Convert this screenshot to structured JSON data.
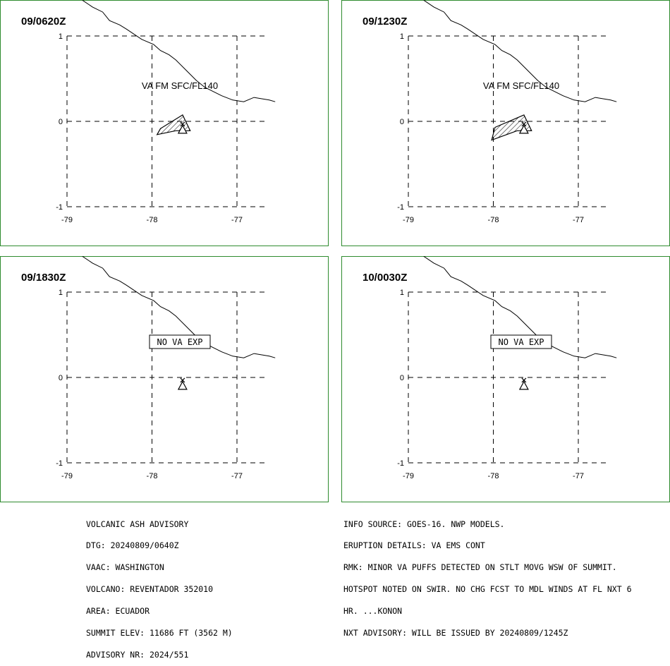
{
  "panels": [
    {
      "id": "p1",
      "time": "09/0620Z",
      "label": "VA FM SFC/FL140",
      "label_boxed": false,
      "ash": [
        [
          -77.64,
          0.075
        ],
        [
          -77.9,
          -0.085
        ],
        [
          -77.94,
          -0.155
        ],
        [
          -77.72,
          -0.11
        ],
        [
          -77.55,
          -0.11
        ]
      ]
    },
    {
      "id": "p2",
      "time": "09/1230Z",
      "label": "VA FM SFC/FL140",
      "label_boxed": false,
      "ash": [
        [
          -77.64,
          0.075
        ],
        [
          -77.98,
          -0.07
        ],
        [
          -78.02,
          -0.22
        ],
        [
          -77.72,
          -0.11
        ],
        [
          -77.55,
          -0.11
        ]
      ]
    },
    {
      "id": "p3",
      "time": "09/1830Z",
      "label": "NO VA EXP",
      "label_boxed": true,
      "ash": null
    },
    {
      "id": "p4",
      "time": "10/0030Z",
      "label": "NO VA EXP",
      "label_boxed": true,
      "ash": null
    }
  ],
  "axes": {
    "x_ticks": [
      {
        "v": -79,
        "label": "-79"
      },
      {
        "v": -78,
        "label": "-78"
      },
      {
        "v": -77,
        "label": "-77"
      }
    ],
    "y_ticks": [
      {
        "v": 1,
        "label": "1"
      },
      {
        "v": 0,
        "label": "0"
      },
      {
        "v": -1,
        "label": "-1"
      }
    ]
  },
  "volcano": {
    "lon": -77.64,
    "lat": -0.09
  },
  "coastline": [
    [
      -78.82,
      1.42
    ],
    [
      -78.7,
      1.34
    ],
    [
      -78.58,
      1.28
    ],
    [
      -78.5,
      1.18
    ],
    [
      -78.38,
      1.13
    ],
    [
      -78.3,
      1.08
    ],
    [
      -78.12,
      0.96
    ],
    [
      -77.98,
      0.9
    ],
    [
      -77.9,
      0.83
    ],
    [
      -77.8,
      0.78
    ],
    [
      -77.72,
      0.72
    ],
    [
      -77.6,
      0.6
    ],
    [
      -77.48,
      0.48
    ],
    [
      -77.38,
      0.4
    ],
    [
      -77.28,
      0.35
    ],
    [
      -77.18,
      0.3
    ],
    [
      -77.05,
      0.25
    ],
    [
      -76.92,
      0.23
    ],
    [
      -76.8,
      0.28
    ],
    [
      -76.62,
      0.25
    ],
    [
      -76.55,
      0.23
    ]
  ],
  "colors": {
    "frame": "#2e8b2e",
    "ink": "#000000",
    "background": "#ffffff"
  },
  "advisory_left": [
    "VOLCANIC ASH ADVISORY",
    "DTG: 20240809/0640Z",
    "VAAC: WASHINGTON",
    "VOLCANO: REVENTADOR 352010",
    "AREA: ECUADOR",
    "SUMMIT ELEV: 11686 FT (3562 M)",
    "ADVISORY NR: 2024/551"
  ],
  "advisory_right": [
    "INFO SOURCE: GOES-16. NWP MODELS.",
    "ERUPTION DETAILS: VA EMS CONT",
    "RMK: MINOR VA PUFFS DETECTED ON STLT MOVG WSW OF SUMMIT.",
    "HOTSPOT NOTED ON SWIR. NO CHG FCST TO MDL WINDS AT FL NXT 6",
    "HR. ...KONON",
    "NXT ADVISORY: WILL BE ISSUED BY 20240809/1245Z"
  ]
}
